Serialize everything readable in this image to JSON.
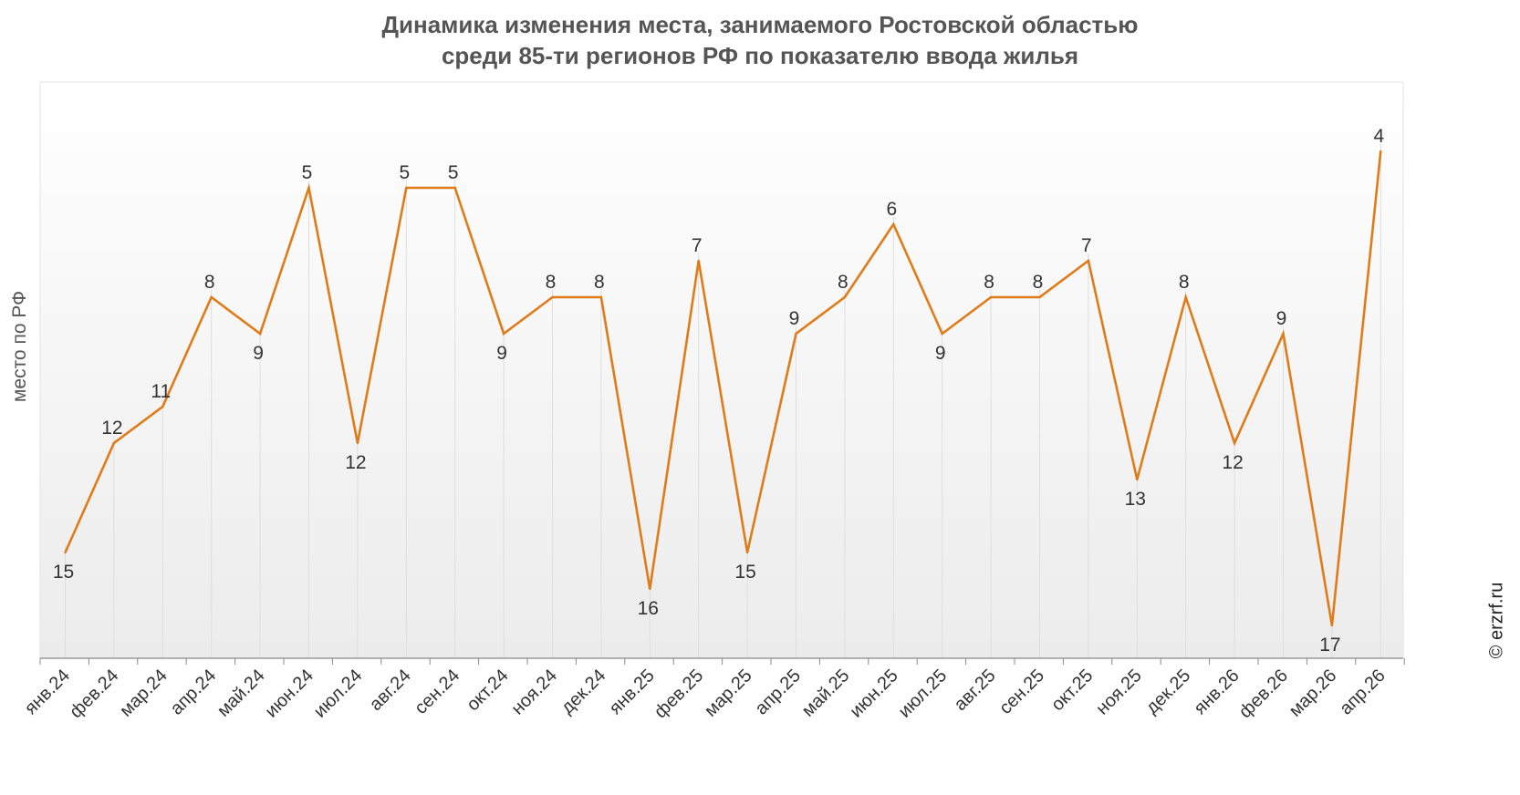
{
  "chart_data": {
    "type": "line",
    "title_line1": "Динамика изменения места, занимаемого Ростовской областью",
    "title_line2": "среди 85-ти регионов РФ по показателю ввода жилья",
    "ylabel": "место по РФ",
    "xlabel": "",
    "y_reversed": true,
    "ylim": [
      19,
      3
    ],
    "grid": "vertical",
    "credit": "© erzrf.ru",
    "line_color": "#e07b19",
    "categories": [
      "янв.24",
      "фев.24",
      "мар.24",
      "апр.24",
      "май.24",
      "июн.24",
      "июл.24",
      "авг.24",
      "сен.24",
      "окт.24",
      "ноя.24",
      "дек.24",
      "янв.25",
      "фев.25",
      "мар.25",
      "апр.25",
      "май.25",
      "июн.25",
      "июл.25",
      "авг.25",
      "сен.25",
      "окт.25",
      "ноя.25",
      "дек.25",
      "янв.26",
      "фев.26",
      "мар.26",
      "апр.26"
    ],
    "series": [
      {
        "name": "",
        "values": [
          15,
          12,
          11,
          8,
          9,
          5,
          12,
          5,
          5,
          9,
          8,
          8,
          16,
          7,
          15,
          9,
          8,
          6,
          9,
          8,
          8,
          7,
          13,
          8,
          12,
          9,
          17,
          4
        ],
        "labels": [
          "15",
          "12",
          "11",
          "8",
          "9",
          "5",
          "12",
          "5",
          "5",
          "9",
          "8",
          "8",
          "16",
          "7",
          "15",
          "9",
          "8",
          "6",
          "9",
          "8",
          "8",
          "7",
          "13",
          "8",
          "12",
          "9",
          "17",
          "4"
        ]
      }
    ]
  }
}
